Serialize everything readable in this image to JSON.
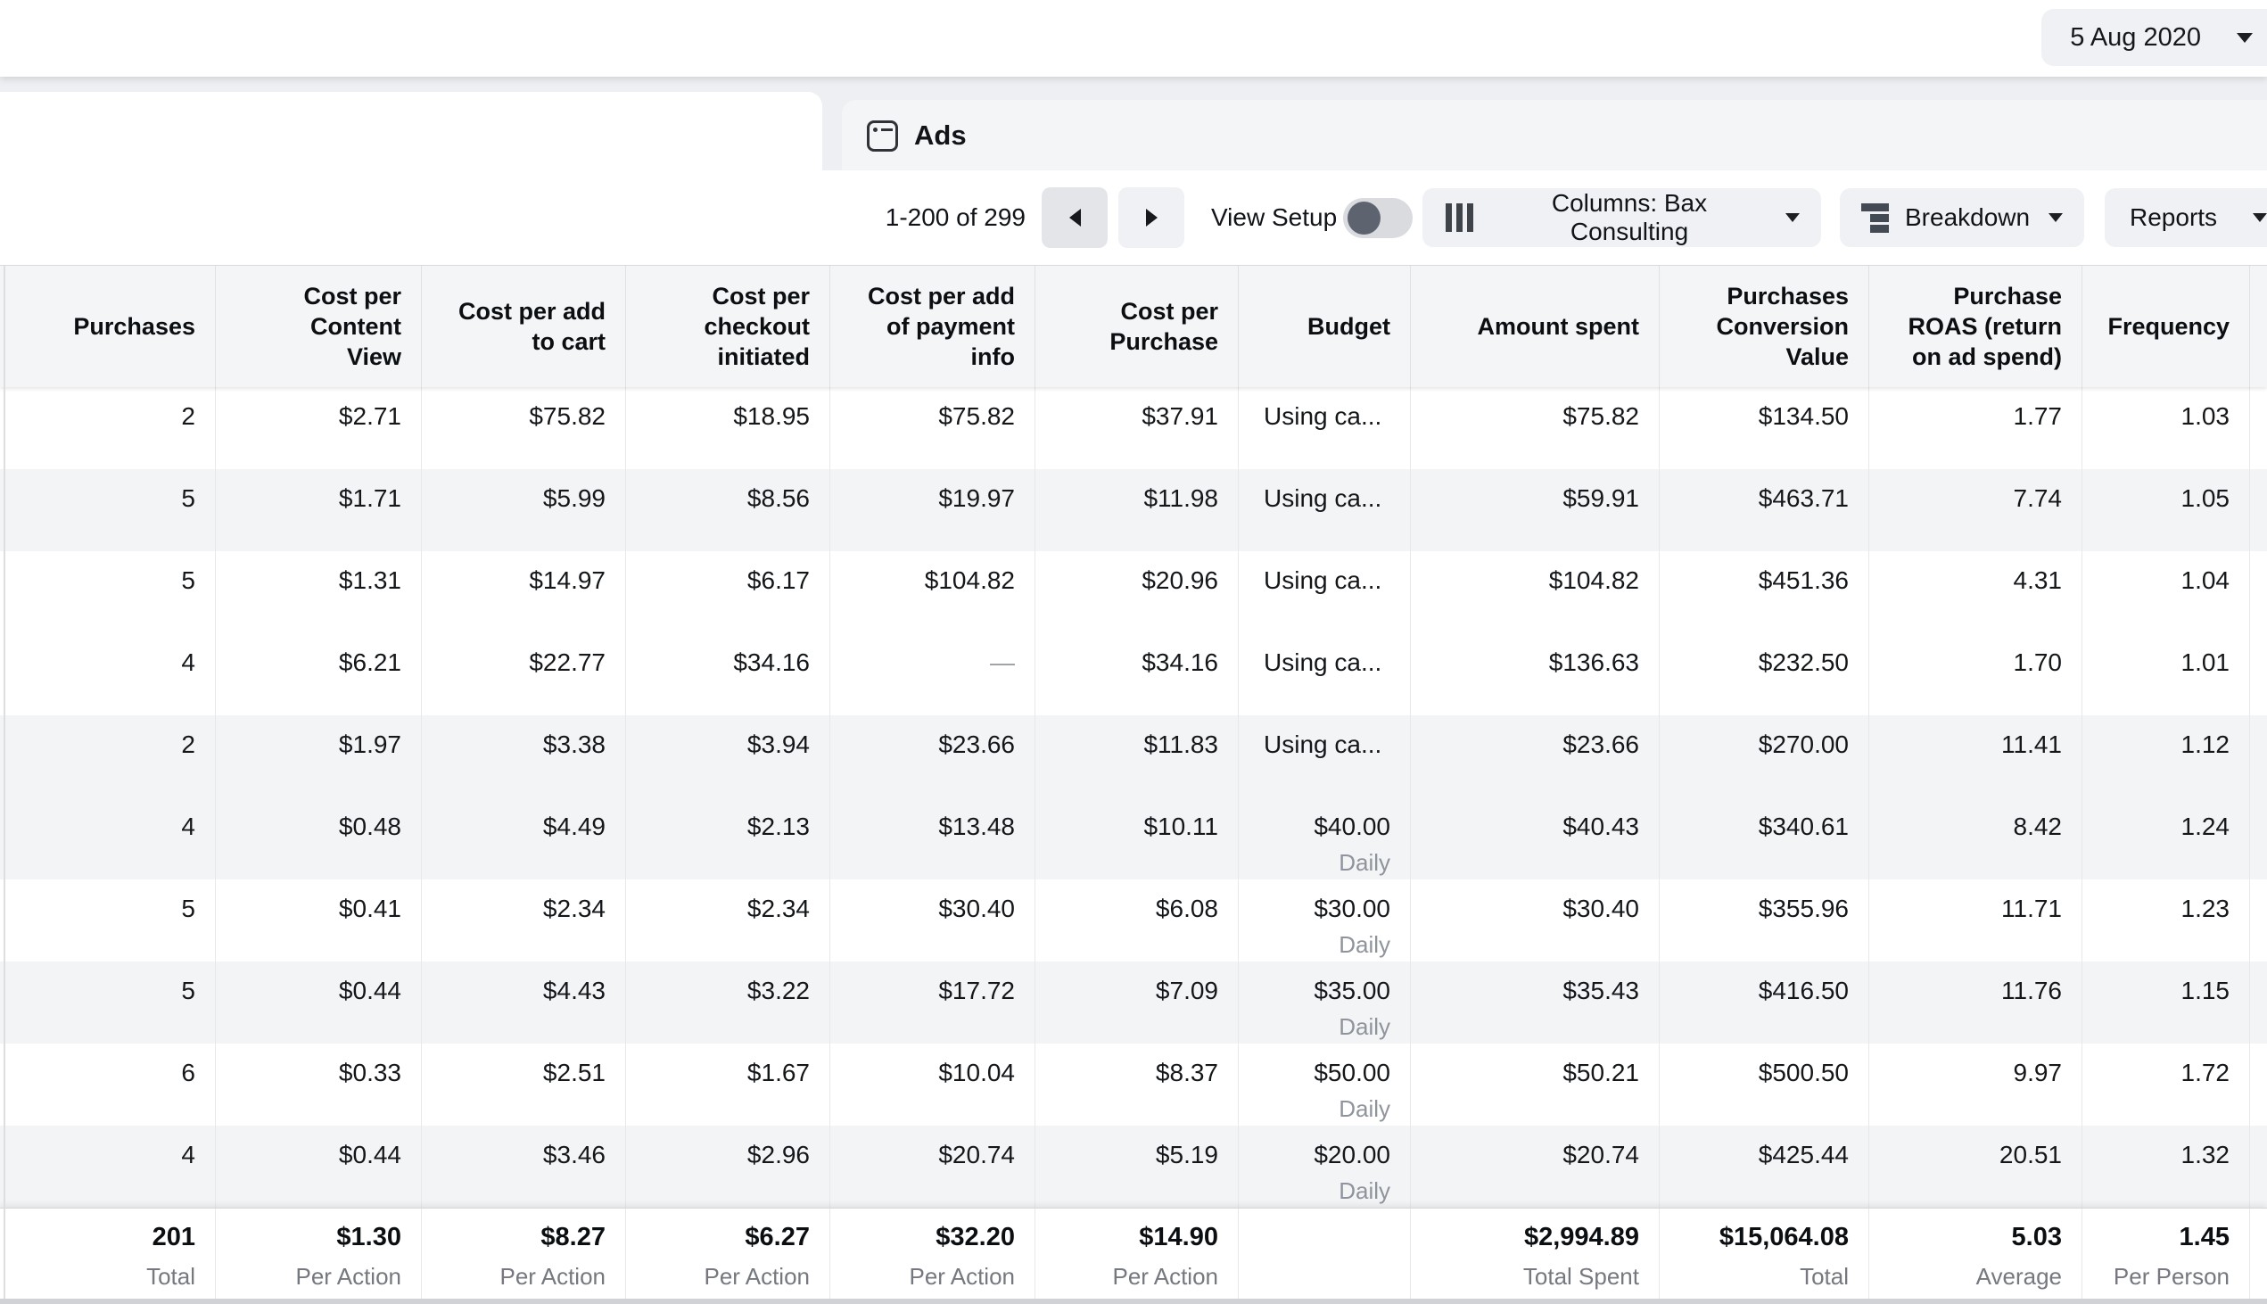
{
  "date_selector": {
    "label": "5 Aug 2020"
  },
  "tab": {
    "label": "Ads",
    "icon": "ad-window-icon"
  },
  "toolbar": {
    "pagination": {
      "range": "1-200 of 299",
      "prev_icon": "arrow-left-icon",
      "next_icon": "arrow-right-icon"
    },
    "view_setup_label": "View Setup",
    "view_setup_state": "off",
    "columns_button": "Columns: Bax Consulting",
    "breakdown_button": "Breakdown",
    "reports_button": "Reports"
  },
  "table": {
    "columns": [
      {
        "label": "Purchases"
      },
      {
        "label": "Cost per\nContent\nView"
      },
      {
        "label": "Cost per add\nto cart"
      },
      {
        "label": "Cost per\ncheckout\ninitiated"
      },
      {
        "label": "Cost per add\nof payment\ninfo"
      },
      {
        "label": "Cost per\nPurchase"
      },
      {
        "label": "Budget"
      },
      {
        "label": "Amount spent"
      },
      {
        "label": "Purchases\nConversion\nValue"
      },
      {
        "label": "Purchase\nROAS (return\non ad spend)"
      },
      {
        "label": "Frequency"
      }
    ],
    "rows": [
      {
        "shaded": false,
        "cells": [
          {
            "v": "2"
          },
          {
            "v": "$2.71"
          },
          {
            "v": "$75.82"
          },
          {
            "v": "$18.95"
          },
          {
            "v": "$75.82"
          },
          {
            "v": "$37.91"
          },
          {
            "v": "Using ca...",
            "align": "left"
          },
          {
            "v": "$75.82"
          },
          {
            "v": "$134.50"
          },
          {
            "v": "1.77"
          },
          {
            "v": "1.03"
          }
        ]
      },
      {
        "shaded": true,
        "cells": [
          {
            "v": "5"
          },
          {
            "v": "$1.71"
          },
          {
            "v": "$5.99"
          },
          {
            "v": "$8.56"
          },
          {
            "v": "$19.97"
          },
          {
            "v": "$11.98"
          },
          {
            "v": "Using ca...",
            "align": "left"
          },
          {
            "v": "$59.91"
          },
          {
            "v": "$463.71"
          },
          {
            "v": "7.74"
          },
          {
            "v": "1.05"
          }
        ]
      },
      {
        "shaded": false,
        "cells": [
          {
            "v": "5"
          },
          {
            "v": "$1.31"
          },
          {
            "v": "$14.97"
          },
          {
            "v": "$6.17"
          },
          {
            "v": "$104.82"
          },
          {
            "v": "$20.96"
          },
          {
            "v": "Using ca...",
            "align": "left"
          },
          {
            "v": "$104.82"
          },
          {
            "v": "$451.36"
          },
          {
            "v": "4.31"
          },
          {
            "v": "1.04"
          }
        ]
      },
      {
        "shaded": false,
        "cells": [
          {
            "v": "4"
          },
          {
            "v": "$6.21"
          },
          {
            "v": "$22.77"
          },
          {
            "v": "$34.16"
          },
          {
            "v": "—",
            "muted": true
          },
          {
            "v": "$34.16"
          },
          {
            "v": "Using ca...",
            "align": "left"
          },
          {
            "v": "$136.63"
          },
          {
            "v": "$232.50"
          },
          {
            "v": "1.70"
          },
          {
            "v": "1.01"
          }
        ]
      },
      {
        "shaded": true,
        "cells": [
          {
            "v": "2"
          },
          {
            "v": "$1.97"
          },
          {
            "v": "$3.38"
          },
          {
            "v": "$3.94"
          },
          {
            "v": "$23.66"
          },
          {
            "v": "$11.83"
          },
          {
            "v": "Using ca...",
            "align": "left"
          },
          {
            "v": "$23.66"
          },
          {
            "v": "$270.00"
          },
          {
            "v": "11.41"
          },
          {
            "v": "1.12"
          }
        ]
      },
      {
        "shaded": true,
        "cells": [
          {
            "v": "4"
          },
          {
            "v": "$0.48"
          },
          {
            "v": "$4.49"
          },
          {
            "v": "$2.13"
          },
          {
            "v": "$13.48"
          },
          {
            "v": "$10.11"
          },
          {
            "v": "$40.00",
            "sub": "Daily"
          },
          {
            "v": "$40.43"
          },
          {
            "v": "$340.61"
          },
          {
            "v": "8.42"
          },
          {
            "v": "1.24"
          }
        ]
      },
      {
        "shaded": false,
        "cells": [
          {
            "v": "5"
          },
          {
            "v": "$0.41"
          },
          {
            "v": "$2.34"
          },
          {
            "v": "$2.34"
          },
          {
            "v": "$30.40"
          },
          {
            "v": "$6.08"
          },
          {
            "v": "$30.00",
            "sub": "Daily"
          },
          {
            "v": "$30.40"
          },
          {
            "v": "$355.96"
          },
          {
            "v": "11.71"
          },
          {
            "v": "1.23"
          }
        ]
      },
      {
        "shaded": true,
        "cells": [
          {
            "v": "5"
          },
          {
            "v": "$0.44"
          },
          {
            "v": "$4.43"
          },
          {
            "v": "$3.22"
          },
          {
            "v": "$17.72"
          },
          {
            "v": "$7.09"
          },
          {
            "v": "$35.00",
            "sub": "Daily"
          },
          {
            "v": "$35.43"
          },
          {
            "v": "$416.50"
          },
          {
            "v": "11.76"
          },
          {
            "v": "1.15"
          }
        ]
      },
      {
        "shaded": false,
        "cells": [
          {
            "v": "6"
          },
          {
            "v": "$0.33"
          },
          {
            "v": "$2.51"
          },
          {
            "v": "$1.67"
          },
          {
            "v": "$10.04"
          },
          {
            "v": "$8.37"
          },
          {
            "v": "$50.00",
            "sub": "Daily"
          },
          {
            "v": "$50.21"
          },
          {
            "v": "$500.50"
          },
          {
            "v": "9.97"
          },
          {
            "v": "1.72"
          }
        ]
      },
      {
        "shaded": true,
        "cells": [
          {
            "v": "4"
          },
          {
            "v": "$0.44"
          },
          {
            "v": "$3.46"
          },
          {
            "v": "$2.96"
          },
          {
            "v": "$20.74"
          },
          {
            "v": "$5.19"
          },
          {
            "v": "$20.00",
            "sub": "Daily"
          },
          {
            "v": "$20.74"
          },
          {
            "v": "$425.44"
          },
          {
            "v": "20.51"
          },
          {
            "v": "1.32"
          }
        ]
      }
    ],
    "footer": [
      {
        "v": "201",
        "sub": "Total"
      },
      {
        "v": "$1.30",
        "sub": "Per Action"
      },
      {
        "v": "$8.27",
        "sub": "Per Action"
      },
      {
        "v": "$6.27",
        "sub": "Per Action"
      },
      {
        "v": "$32.20",
        "sub": "Per Action"
      },
      {
        "v": "$14.90",
        "sub": "Per Action"
      },
      {
        "v": "",
        "sub": ""
      },
      {
        "v": "$2,994.89",
        "sub": "Total Spent"
      },
      {
        "v": "$15,064.08",
        "sub": "Total"
      },
      {
        "v": "5.03",
        "sub": "Average"
      },
      {
        "v": "1.45",
        "sub": "Per Person"
      }
    ]
  }
}
